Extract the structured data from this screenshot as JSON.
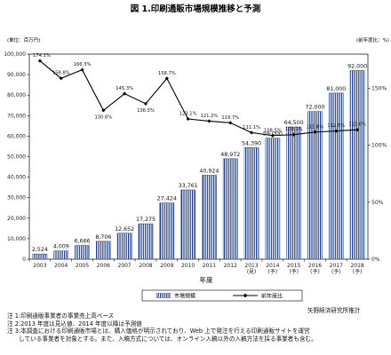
{
  "chart_data": {
    "type": "bar",
    "title": "図 1.印刷通販市場規模推移と予測",
    "unit_left": "(単位：百万円)",
    "unit_right": "(前年度比：%)",
    "xlabel": "年度",
    "categories": [
      {
        "year": "2003",
        "note": ""
      },
      {
        "year": "2004",
        "note": ""
      },
      {
        "year": "2005",
        "note": ""
      },
      {
        "year": "2006",
        "note": ""
      },
      {
        "year": "2007",
        "note": ""
      },
      {
        "year": "2008",
        "note": ""
      },
      {
        "year": "2009",
        "note": ""
      },
      {
        "year": "2010",
        "note": ""
      },
      {
        "year": "2011",
        "note": ""
      },
      {
        "year": "2012",
        "note": ""
      },
      {
        "year": "2013",
        "note": "(見)"
      },
      {
        "year": "2014",
        "note": "(予)"
      },
      {
        "year": "2015",
        "note": "(予)"
      },
      {
        "year": "2016",
        "note": "(予)"
      },
      {
        "year": "2017",
        "note": "(予)"
      },
      {
        "year": "2018",
        "note": "(予)"
      }
    ],
    "series": [
      {
        "name": "市場規模",
        "axis": "left",
        "values": [
          2524,
          4009,
          6666,
          8706,
          12652,
          17275,
          27424,
          33761,
          40924,
          48972,
          54390,
          59000,
          64500,
          72000,
          81000,
          92000
        ],
        "labels": [
          "2,524",
          "4,009",
          "6,666",
          "8,706",
          "12,652",
          "17,275",
          "27,424",
          "33,761",
          "40,924",
          "48,972",
          "54,390",
          "59,000",
          "64,500",
          "72,000",
          "81,000",
          "92,000"
        ]
      },
      {
        "name": "前年度比",
        "axis": "right",
        "values": [
          174.1,
          158.8,
          166.3,
          130.6,
          145.3,
          136.5,
          158.7,
          123.1,
          121.2,
          119.7,
          111.1,
          108.5,
          109.3,
          111.6,
          112.5,
          113.6
        ],
        "labels": [
          "174.1%",
          "158.8%",
          "166.3%",
          "130.6%",
          "145.3%",
          "136.5%",
          "158.7%",
          "123.1%",
          "121.2%",
          "119.7%",
          "111.1%",
          "108.5%",
          "109.3%",
          "111.6%",
          "112.5%",
          "113.6%"
        ]
      }
    ],
    "ylim": [
      0,
      100000
    ],
    "yticks": [
      0,
      10000,
      20000,
      30000,
      40000,
      50000,
      60000,
      70000,
      80000,
      90000,
      100000
    ],
    "ytick_labels": [
      "0",
      "10,000",
      "20,000",
      "30,000",
      "40,000",
      "50,000",
      "60,000",
      "70,000",
      "80,000",
      "90,000",
      "100,000"
    ],
    "y2lim": [
      0,
      180
    ],
    "y2ticks": [
      0,
      50,
      100,
      150
    ],
    "y2tick_labels": [
      "0%",
      "50%",
      "100%",
      "150%"
    ],
    "legend_position": "bottom",
    "grid": false,
    "colors": {
      "bar_fill": "#ffffff",
      "bar_pattern": "#1d3a8a",
      "bar_edge": "#1d3a8a",
      "line": "#000000"
    }
  },
  "source": "矢野経済研究所推計",
  "notes": [
    "注 1:印刷通販事業者の事業売上高ベース",
    "注 2:2013 年度は見込値、2014 年度以降は予測値",
    "注 3:本調査における印刷通販市場とは、購入価格が明示されており、Web 上で発注を行える印刷通販サイトを運営",
    "　　している事業者を対象とする。また、入稿方式については、オンライン入稿以外の入稿方法を採る事業者も含む。"
  ]
}
